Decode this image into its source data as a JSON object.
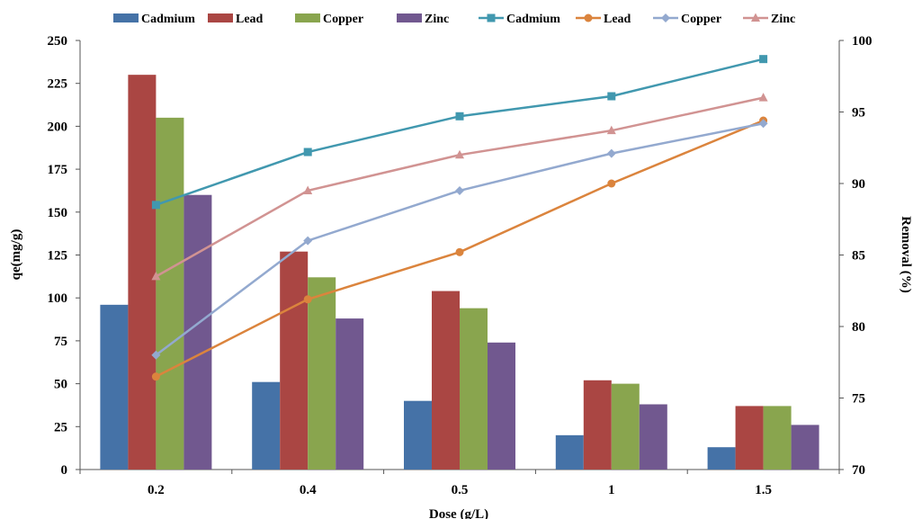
{
  "chart_data": {
    "type": "bar",
    "categories": [
      "0.2",
      "0.4",
      "0.5",
      "1",
      "1.5"
    ],
    "xlabel": "Dose (g/L)",
    "ylabel": "qe(mg/g)",
    "y2label": "Removal (%)",
    "ylim": [
      0,
      250
    ],
    "y2lim": [
      70,
      100
    ],
    "yticks": [
      "0",
      "25",
      "50",
      "75",
      "100",
      "125",
      "150",
      "175",
      "200",
      "225",
      "250"
    ],
    "y2ticks": [
      "70",
      "75",
      "80",
      "85",
      "90",
      "95",
      "100"
    ],
    "grid": false,
    "legend_position": "top",
    "bar_series": [
      {
        "name": "Cadmium",
        "color": "#4572A7",
        "values": [
          96,
          51,
          40,
          20,
          13
        ]
      },
      {
        "name": "Lead",
        "color": "#AA4643",
        "values": [
          230,
          127,
          104,
          52,
          37
        ]
      },
      {
        "name": "Copper",
        "color": "#89A54E",
        "values": [
          205,
          112,
          94,
          50,
          37
        ]
      },
      {
        "name": "Zinc",
        "color": "#71588F",
        "values": [
          160,
          88,
          74,
          38,
          26
        ]
      }
    ],
    "line_series": [
      {
        "name": "Cadmium",
        "color": "#4198AF",
        "marker": "square",
        "values": [
          88.5,
          92.2,
          94.7,
          96.1,
          98.7
        ]
      },
      {
        "name": "Lead",
        "color": "#DB843D",
        "marker": "circle",
        "values": [
          76.5,
          81.9,
          85.2,
          90.0,
          94.4
        ]
      },
      {
        "name": "Copper",
        "color": "#93A9CF",
        "marker": "diamond",
        "values": [
          78.0,
          86.0,
          89.5,
          92.1,
          94.2
        ]
      },
      {
        "name": "Zinc",
        "color": "#D19392",
        "marker": "triangle",
        "values": [
          83.5,
          89.5,
          92.0,
          93.7,
          96.0
        ]
      }
    ]
  }
}
